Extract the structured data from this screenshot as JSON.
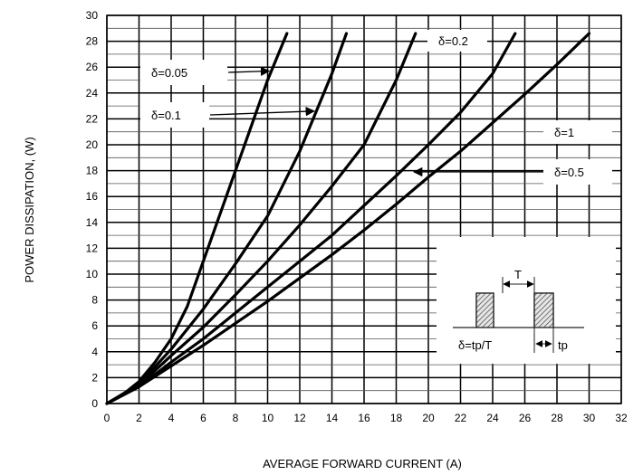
{
  "chart_data": {
    "type": "line",
    "xlabel": "AVERAGE FORWARD CURRENT (A)",
    "ylabel": "POWER DISSIPATION, (W)",
    "xlim": [
      0,
      32
    ],
    "ylim": [
      0,
      30
    ],
    "x_ticks": [
      "0",
      "2",
      "4",
      "6",
      "8",
      "10",
      "12",
      "14",
      "16",
      "18",
      "20",
      "22",
      "24",
      "26",
      "28",
      "30",
      "32"
    ],
    "y_ticks": [
      "0",
      "2",
      "4",
      "6",
      "8",
      "10",
      "12",
      "14",
      "16",
      "18",
      "20",
      "22",
      "24",
      "26",
      "28",
      "30"
    ],
    "grid": "on",
    "series": [
      {
        "name": "δ=0.05",
        "x": [
          0,
          1,
          2,
          3,
          4,
          5,
          6,
          7,
          8,
          9,
          10,
          11.2
        ],
        "y": [
          0,
          0.7,
          1.7,
          3.2,
          5.0,
          7.5,
          11.0,
          14.5,
          18.0,
          21.5,
          25.0,
          28.6
        ]
      },
      {
        "name": "δ=0.1",
        "x": [
          0,
          2,
          4,
          6,
          8,
          10,
          12,
          13,
          14,
          14.9
        ],
        "y": [
          0,
          1.5,
          4.2,
          7.3,
          10.8,
          14.5,
          19.5,
          22.5,
          25.5,
          28.6
        ]
      },
      {
        "name": "δ=0.2",
        "x": [
          0,
          2,
          4,
          6,
          8,
          10,
          12,
          14,
          16,
          18,
          19.2
        ],
        "y": [
          0,
          1.4,
          3.7,
          5.9,
          8.4,
          11.0,
          13.8,
          16.8,
          20.0,
          25.0,
          28.6
        ]
      },
      {
        "name": "δ=0.5",
        "x": [
          0,
          2,
          4,
          6,
          8,
          10,
          12,
          14,
          16,
          18,
          20,
          22,
          24,
          25.4
        ],
        "y": [
          0,
          1.3,
          3.2,
          5.0,
          7.0,
          9.0,
          11.0,
          13.0,
          15.3,
          17.6,
          20.0,
          22.5,
          25.5,
          28.6
        ]
      },
      {
        "name": "δ=1",
        "x": [
          0,
          2,
          4,
          6,
          8,
          10,
          12,
          14,
          16,
          18,
          20,
          22,
          24,
          26,
          28,
          30
        ],
        "y": [
          0,
          1.3,
          2.9,
          4.5,
          6.2,
          7.9,
          9.7,
          11.5,
          13.4,
          15.4,
          17.5,
          19.5,
          21.7,
          23.9,
          26.2,
          28.6
        ]
      }
    ],
    "labels": [
      {
        "text": "δ=0.05",
        "box_x": 10.2,
        "box_y": 25.6,
        "arrow_to": [
          10.1,
          25.7
        ]
      },
      {
        "text": "δ=0.1",
        "box_x": 12.8,
        "box_y": 22.6,
        "arrow_to": [
          12.9,
          22.6
        ]
      },
      {
        "text": "δ=0.2",
        "box_x": 18.0,
        "box_y": 28.1
      },
      {
        "text": "δ=1",
        "box_x": 27.0,
        "box_y": 20.5
      },
      {
        "text": "δ=0.5",
        "box_x": 27.0,
        "box_y": 18.5,
        "arrow_to": [
          19.1,
          17.9
        ]
      }
    ],
    "inset": {
      "period_label": "T",
      "pulse_label": "tp",
      "formula_label": "δ=tp/T"
    }
  }
}
